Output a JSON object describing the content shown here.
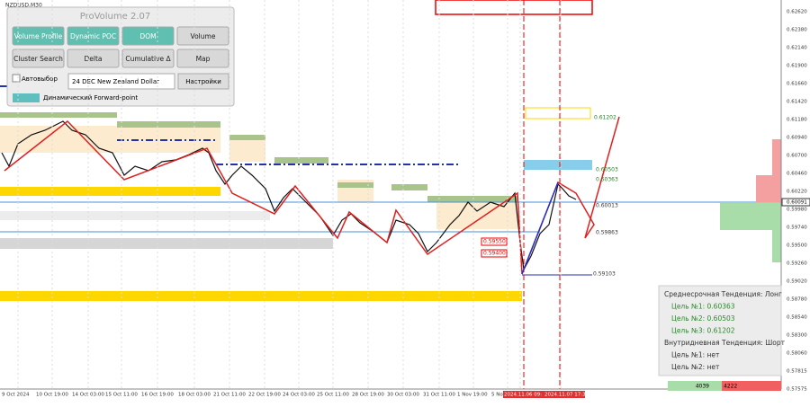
{
  "header": {
    "symbol": "NZDUSD,M30"
  },
  "panel": {
    "title": "ProVolume 2.07",
    "buttons": [
      "Volume Profile",
      "Dynamic POC",
      "DOM",
      "Volume",
      "Cluster Search",
      "Delta",
      "Cumulative Δ",
      "Map"
    ],
    "auto_select": "Автовыбор",
    "instrument": "24 DEC New Zealand Dollar",
    "settings": "Настройки",
    "forward_point": "Динамический Forward-point"
  },
  "price_axis": {
    "labels": [
      "0.62620",
      "0.62380",
      "0.62140",
      "0.61900",
      "0.61660",
      "0.61420",
      "0.61180",
      "0.60940",
      "0.60700",
      "0.60460",
      "0.60220",
      "0.59980",
      "0.59740",
      "0.59500",
      "0.59260",
      "0.59020",
      "0.58780",
      "0.58540",
      "0.58300",
      "0.58060",
      "0.57815",
      "0.57575"
    ],
    "current_price": "0.60091"
  },
  "time_axis": {
    "labels": [
      "9 Oct 2024",
      "10 Oct 19:00",
      "14 Oct 03:00",
      "15 Oct 11:00",
      "16 Oct 19:00",
      "18 Oct 03:00",
      "21 Oct 11:00",
      "22 Oct 19:00",
      "24 Oct 03:00",
      "25 Oct 11:00",
      "28 Oct 19:00",
      "30 Oct 03:00",
      "31 Oct 11:00",
      "1 Nov 19:00",
      "5 Nov",
      "2024.11.06 09:",
      "2024.11.07 17:30"
    ]
  },
  "levels": [
    "0.61202",
    "0.60503",
    "0.60363",
    "0.60013",
    "0.59863",
    "0.59103",
    "0.59550",
    "0.59400"
  ],
  "trend_box": {
    "lines": [
      "Среднесрочная Тенденция: Лонг",
      "Цель №1: 0.60363",
      "Цель №2: 0.60503",
      "Цель №3: 0.61202",
      "Внутридневная Тенденция: Шорт",
      "Цель №1: нет",
      "Цель №2: нет"
    ]
  },
  "volume_bar": {
    "buy": "4039",
    "sell": "4222"
  }
}
